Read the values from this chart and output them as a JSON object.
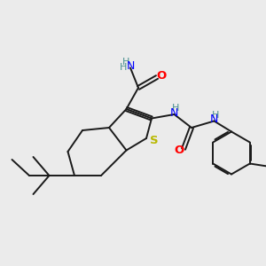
{
  "background_color": "#ebebeb",
  "bond_color": "#1a1a1a",
  "S_color": "#b8b800",
  "N_color": "#4a9090",
  "O_color": "#ff0000",
  "urea_N_color": "#0000ff",
  "figsize": [
    3.0,
    3.0
  ],
  "dpi": 100,
  "xlim": [
    0,
    10
  ],
  "ylim": [
    0,
    10
  ]
}
